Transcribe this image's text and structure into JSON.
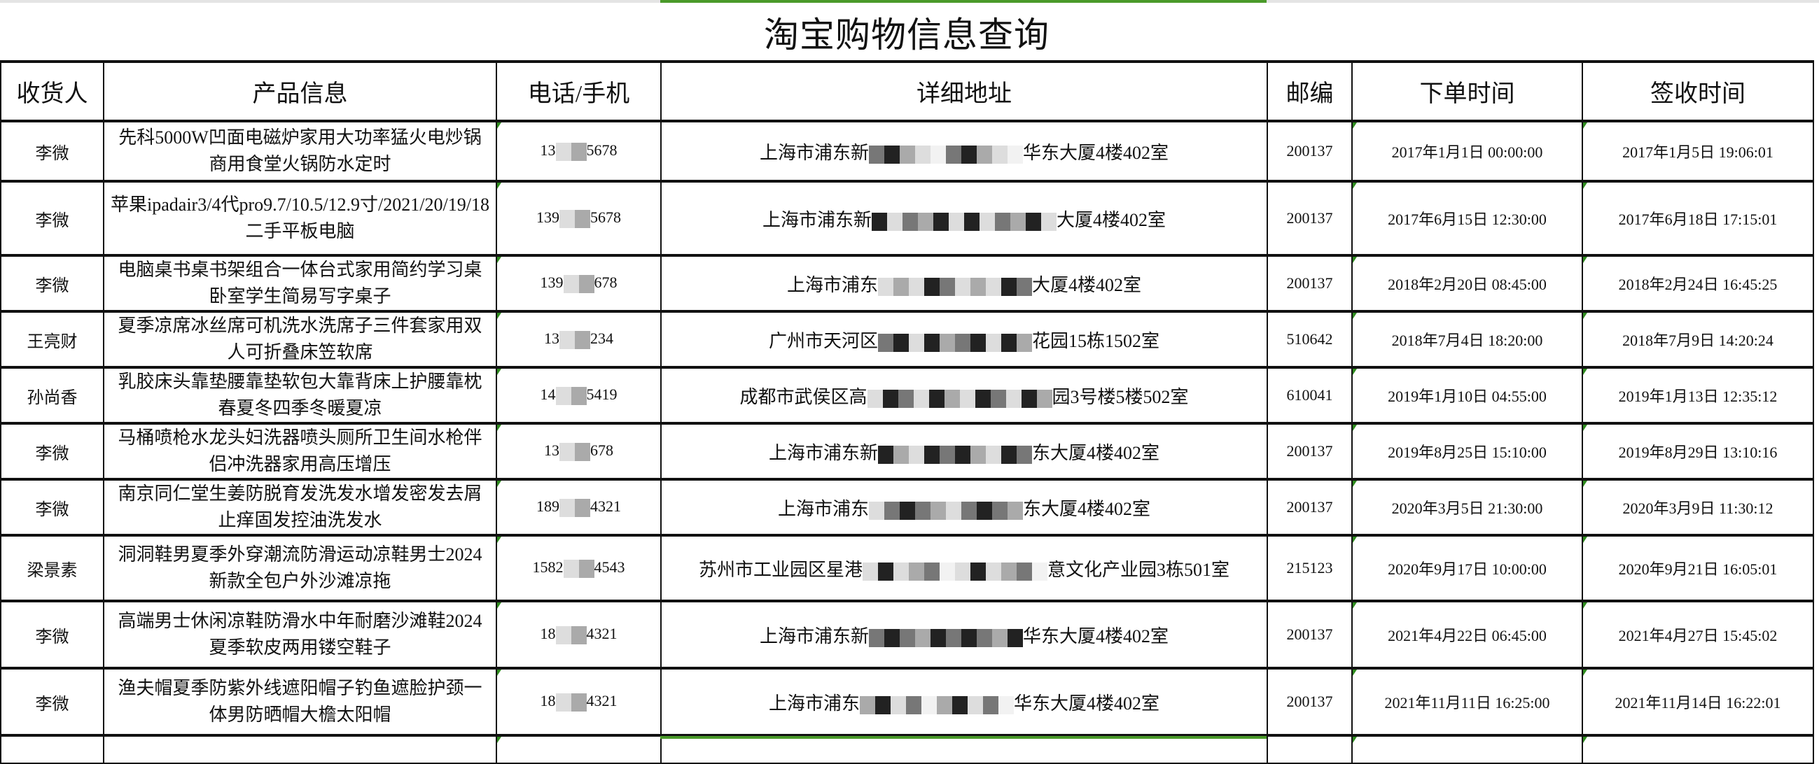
{
  "title": "淘宝购物信息查询",
  "colors": {
    "selection": "#4a9a2a",
    "marker": "#2e8b1e"
  },
  "headers": [
    "收货人",
    "产品信息",
    "电话/手机",
    "详细地址",
    "邮编",
    "下单时间",
    "签收时间"
  ],
  "rows": [
    {
      "name": "李微",
      "product": "先科5000W凹面电磁炉家用大功率猛火电炒锅商用食堂火锅防水定时",
      "phone_pre": "13",
      "phone_suf": "5678",
      "addr_pre": "上海市浦东新",
      "addr_suf": "华东大厦4楼402室",
      "zip": "200137",
      "order": "2017年1月1日 00:00:00",
      "sign": "2017年1月5日 19:06:01"
    },
    {
      "name": "李微",
      "product": "苹果ipadair3/4代pro9.7/10.5/12.9寸/2021/20/19/18二手平板电脑",
      "phone_pre": "139",
      "phone_suf": "5678",
      "addr_pre": "上海市浦东新",
      "addr_suf": "大厦4楼402室",
      "zip": "200137",
      "order": "2017年6月15日 12:30:00",
      "sign": "2017年6月18日 17:15:01"
    },
    {
      "name": "李微",
      "product": "电脑桌书桌书架组合一体台式家用简约学习桌卧室学生简易写字桌子",
      "phone_pre": "139",
      "phone_suf": "678",
      "addr_pre": "上海市浦东",
      "addr_suf": "大厦4楼402室",
      "zip": "200137",
      "order": "2018年2月20日 08:45:00",
      "sign": "2018年2月24日 16:45:25"
    },
    {
      "name": "王亮财",
      "product": "夏季凉席冰丝席可机洗水洗席子三件套家用双人可折叠床笠软席",
      "phone_pre": "13",
      "phone_suf": "234",
      "addr_pre": "广州市天河区",
      "addr_suf": "花园15栋1502室",
      "zip": "510642",
      "order": "2018年7月4日 18:20:00",
      "sign": "2018年7月9日 14:20:24"
    },
    {
      "name": "孙尚香",
      "product": "乳胶床头靠垫腰靠垫软包大靠背床上护腰靠枕春夏冬四季冬暖夏凉",
      "phone_pre": "14",
      "phone_suf": "5419",
      "addr_pre": "成都市武侯区高",
      "addr_suf": "园3号楼5楼502室",
      "zip": "610041",
      "order": "2019年1月10日 04:55:00",
      "sign": "2019年1月13日 12:35:12"
    },
    {
      "name": "李微",
      "product": "马桶喷枪水龙头妇洗器喷头厕所卫生间水枪伴侣冲洗器家用高压增压",
      "phone_pre": "13",
      "phone_suf": "678",
      "addr_pre": "上海市浦东新",
      "addr_suf": "东大厦4楼402室",
      "zip": "200137",
      "order": "2019年8月25日 15:10:00",
      "sign": "2019年8月29日 13:10:16"
    },
    {
      "name": "李微",
      "product": "南京同仁堂生姜防脱育发洗发水增发密发去屑止痒固发控油洗发水",
      "phone_pre": "189",
      "phone_suf": "4321",
      "addr_pre": "上海市浦东",
      "addr_suf": "东大厦4楼402室",
      "zip": "200137",
      "order": "2020年3月5日 21:30:00",
      "sign": "2020年3月9日 11:30:12"
    },
    {
      "name": "梁景素",
      "product": "洞洞鞋男夏季外穿潮流防滑运动凉鞋男士2024新款全包户外沙滩凉拖",
      "phone_pre": "1582",
      "phone_suf": "4543",
      "addr_pre": "苏州市工业园区星港",
      "addr_suf": "意文化产业园3栋501室",
      "zip": "215123",
      "order": "2020年9月17日 10:00:00",
      "sign": "2020年9月21日 16:05:01"
    },
    {
      "name": "李微",
      "product": "高端男士休闲凉鞋防滑水中年耐磨沙滩鞋2024夏季软皮两用镂空鞋子",
      "phone_pre": "18",
      "phone_suf": "4321",
      "addr_pre": "上海市浦东新",
      "addr_suf": "华东大厦4楼402室",
      "zip": "200137",
      "order": "2021年4月22日 06:45:00",
      "sign": "2021年4月27日 15:45:02"
    },
    {
      "name": "李微",
      "product": "渔夫帽夏季防紫外线遮阳帽子钓鱼遮脸护颈一体男防晒帽大檐太阳帽",
      "phone_pre": "18",
      "phone_suf": "4321",
      "addr_pre": "上海市浦东",
      "addr_suf": "华东大厦4楼402室",
      "zip": "200137",
      "order": "2021年11月11日 16:25:00",
      "sign": "2021年11月14日 16:22:01"
    }
  ]
}
